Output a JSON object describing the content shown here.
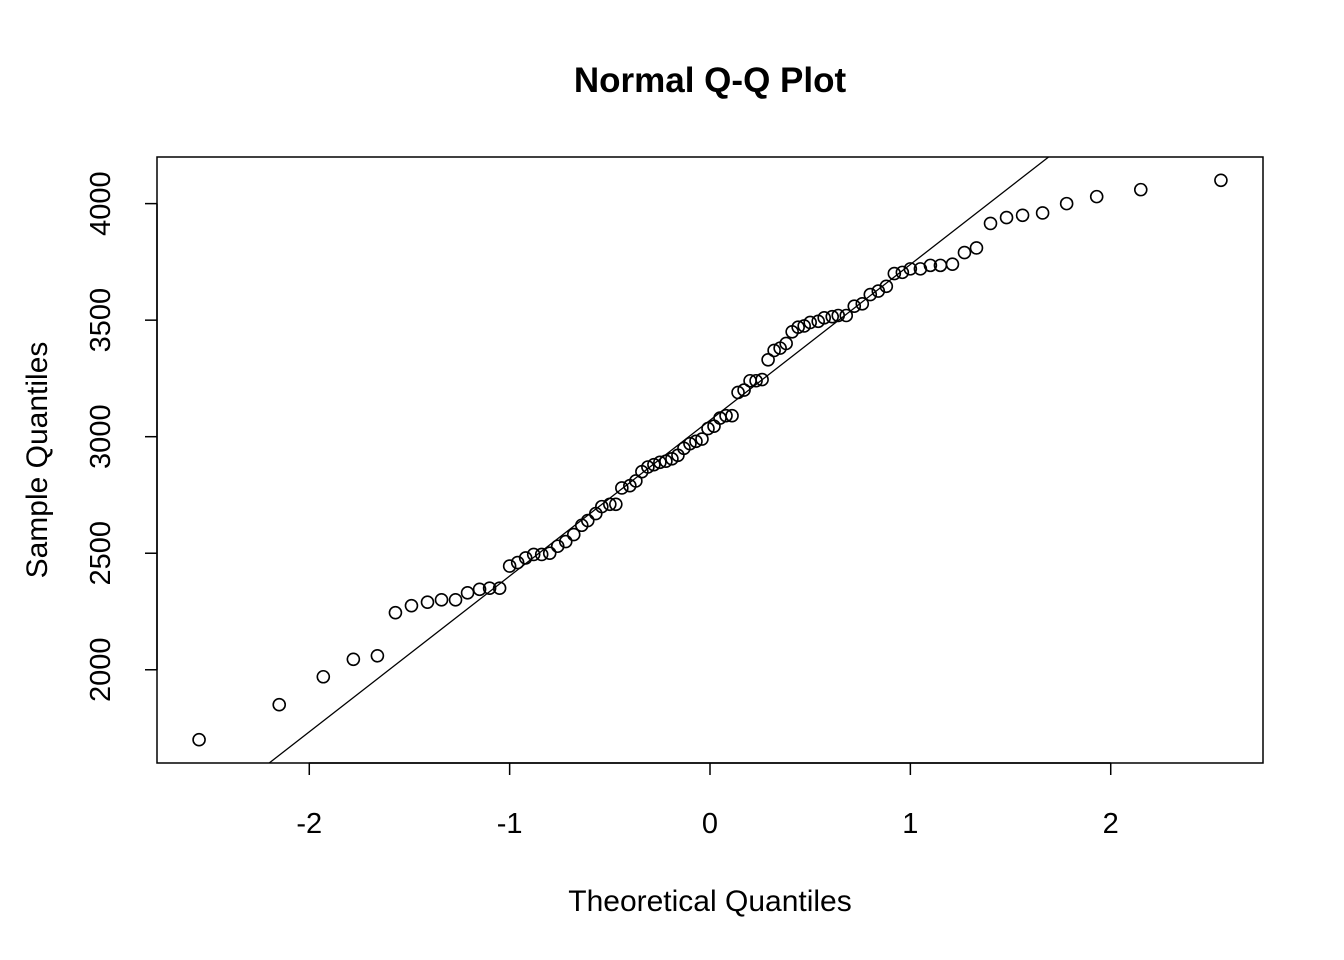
{
  "chart_data": {
    "type": "scatter",
    "title": "Normal Q-Q Plot",
    "xlabel": "Theoretical Quantiles",
    "ylabel": "Sample Quantiles",
    "xlim": [
      -2.76,
      2.76
    ],
    "ylim": [
      1600,
      4200
    ],
    "x_ticks": [
      -2,
      -1,
      0,
      1,
      2
    ],
    "x_tick_labels": [
      "-2",
      "-1",
      "0",
      "1",
      "2"
    ],
    "y_ticks": [
      2000,
      2500,
      3000,
      3500,
      4000
    ],
    "y_tick_labels": [
      "2000",
      "2500",
      "3000",
      "3500",
      "4000"
    ],
    "grid": false,
    "legend": "none",
    "reference_line": {
      "x1": -2.2,
      "y1": 1600,
      "x2": 1.69,
      "y2": 4200
    },
    "series": [
      {
        "x": [
          -2.55,
          -2.15,
          -1.93,
          -1.78,
          -1.66,
          -1.57,
          -1.49,
          -1.41,
          -1.34,
          -1.27,
          -1.21,
          -1.15,
          -1.1,
          -1.05,
          -1.0,
          -0.96,
          -0.92,
          -0.88,
          -0.84,
          -0.8,
          -0.76,
          -0.72,
          -0.68,
          -0.64,
          -0.61,
          -0.57,
          -0.54,
          -0.5,
          -0.47,
          -0.44,
          -0.4,
          -0.37,
          -0.34,
          -0.31,
          -0.28,
          -0.25,
          -0.22,
          -0.19,
          -0.16,
          -0.13,
          -0.1,
          -0.07,
          -0.04,
          -0.01,
          0.02,
          0.05,
          0.08,
          0.11,
          0.14,
          0.17,
          0.2,
          0.23,
          0.26,
          0.29,
          0.32,
          0.35,
          0.38,
          0.41,
          0.44,
          0.47,
          0.5,
          0.54,
          0.57,
          0.61,
          0.64,
          0.68,
          0.72,
          0.76,
          0.8,
          0.84,
          0.88,
          0.92,
          0.96,
          1.0,
          1.05,
          1.1,
          1.15,
          1.21,
          1.27,
          1.33,
          1.4,
          1.48,
          1.56,
          1.66,
          1.78,
          1.93,
          2.15,
          2.55
        ],
        "y": [
          1700,
          1850,
          1970,
          2045,
          2060,
          2245,
          2275,
          2290,
          2300,
          2300,
          2330,
          2345,
          2350,
          2350,
          2445,
          2460,
          2480,
          2495,
          2495,
          2500,
          2530,
          2550,
          2580,
          2620,
          2640,
          2670,
          2700,
          2710,
          2710,
          2780,
          2790,
          2810,
          2850,
          2870,
          2880,
          2890,
          2895,
          2905,
          2920,
          2950,
          2970,
          2980,
          2990,
          3035,
          3045,
          3080,
          3090,
          3090,
          3190,
          3200,
          3240,
          3240,
          3245,
          3330,
          3370,
          3380,
          3400,
          3450,
          3470,
          3475,
          3490,
          3495,
          3510,
          3515,
          3520,
          3520,
          3560,
          3570,
          3610,
          3625,
          3645,
          3700,
          3705,
          3720,
          3720,
          3735,
          3735,
          3740,
          3790,
          3810,
          3915,
          3940,
          3950,
          3960,
          4000,
          4030,
          4060,
          4100
        ]
      }
    ]
  }
}
